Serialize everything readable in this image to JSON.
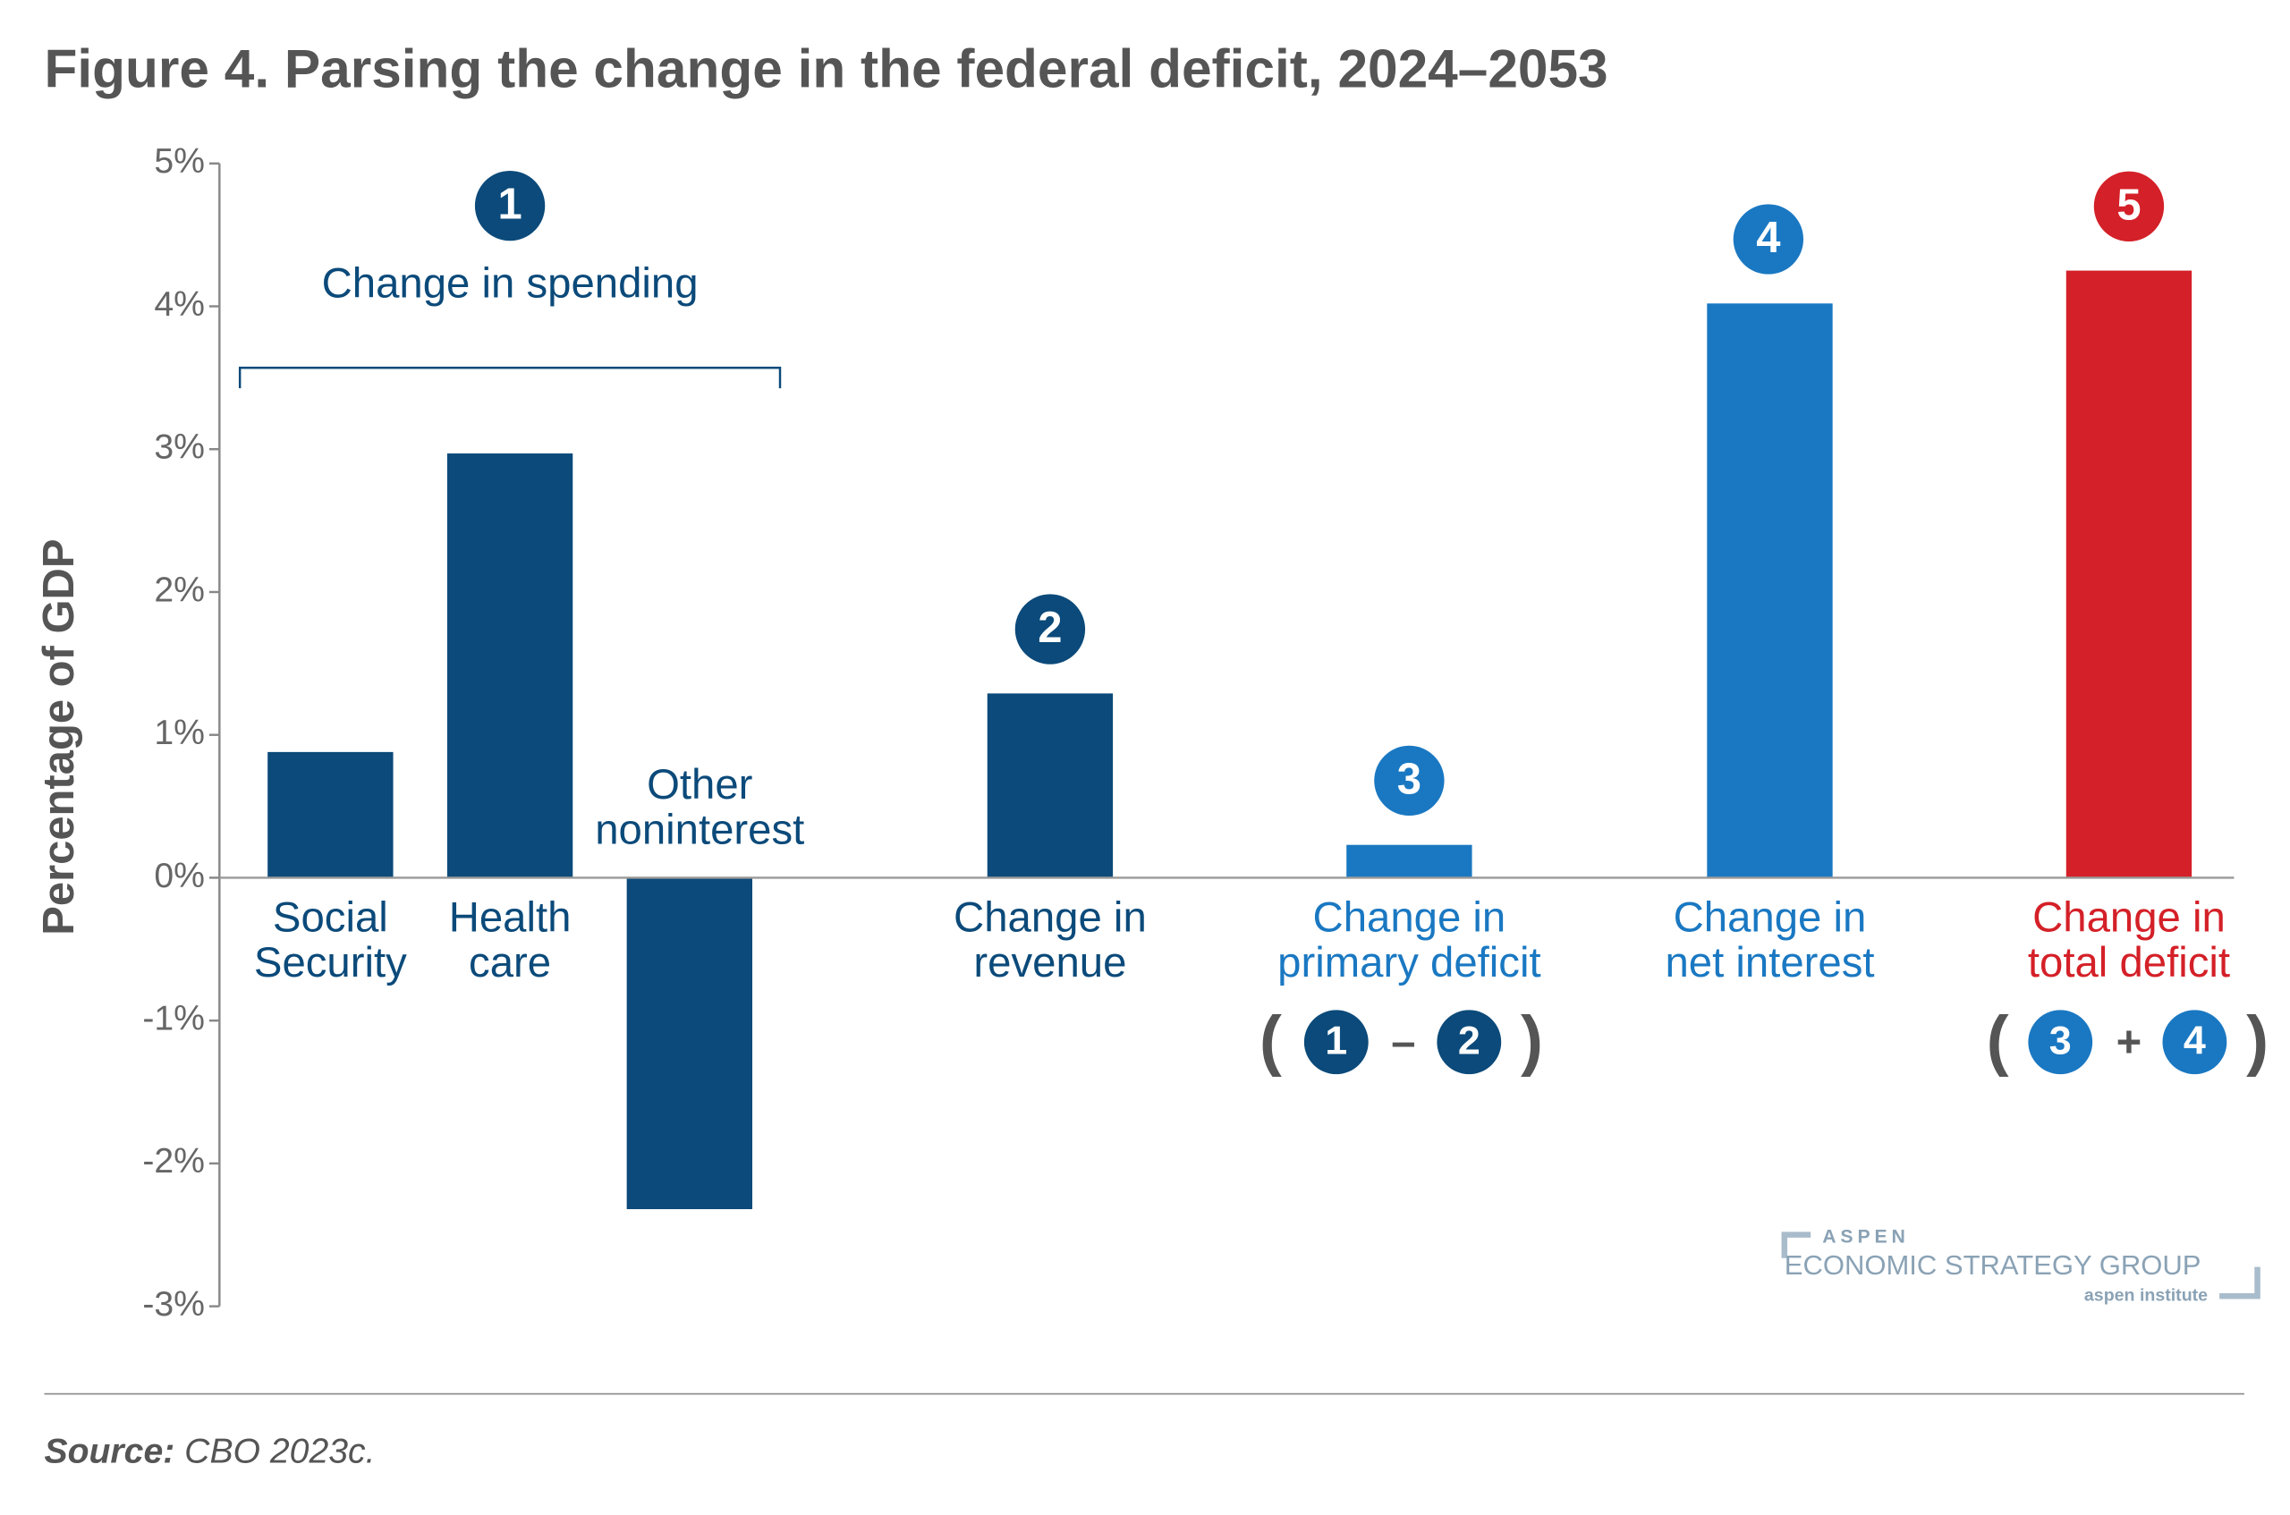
{
  "chart_data": {
    "type": "bar",
    "title": "Figure 4. Parsing the change in the federal deficit, 2024–2053",
    "y_label": "Percentage of GDP",
    "categories": [
      [
        "Social",
        "Security"
      ],
      [
        "Health",
        "care"
      ],
      [
        "Other",
        "noninterest"
      ],
      [
        "Change in",
        "revenue"
      ],
      [
        "Change in",
        "primary deficit"
      ],
      [
        "Change in",
        "net interest"
      ],
      [
        "Change in",
        "total deficit"
      ]
    ],
    "values": [
      0.88,
      2.97,
      -2.32,
      1.29,
      0.23,
      4.02,
      4.25
    ],
    "colors": [
      "#0b4a7a",
      "#0b4a7a",
      "#0b4a7a",
      "#0b4a7a",
      "#1a78c2",
      "#1a78c2",
      "#d42028"
    ],
    "ylim": [
      -3,
      5
    ],
    "yticks": [
      {
        "value": -3,
        "label": "-3%"
      },
      {
        "value": -2,
        "label": "-2%"
      },
      {
        "value": -1,
        "label": "-1%"
      },
      {
        "value": 0,
        "label": "0%"
      },
      {
        "value": 1,
        "label": "1%"
      },
      {
        "value": 2,
        "label": "2%"
      },
      {
        "value": 3,
        "label": "3%"
      },
      {
        "value": 4,
        "label": "4%"
      },
      {
        "value": 5,
        "label": "5%"
      }
    ],
    "group_label": "Change in spending",
    "badges": [
      {
        "label": "1",
        "color": "#0b4a7a"
      },
      {
        "label": "2",
        "color": "#0b4a7a"
      },
      {
        "label": "3",
        "color": "#1a78c2"
      },
      {
        "label": "4",
        "color": "#1a78c2"
      },
      {
        "label": "5",
        "color": "#d42028"
      }
    ],
    "formulas": [
      [
        "(",
        "1",
        "–",
        "2",
        ")"
      ],
      [
        "(",
        "3",
        "+",
        "4",
        ")"
      ]
    ],
    "source_label": "Source:",
    "source": "CBO 2023c.",
    "logo": {
      "top": "ASPEN",
      "main": "ECONOMIC STRATEGY GROUP",
      "sub": "aspen institute"
    }
  }
}
